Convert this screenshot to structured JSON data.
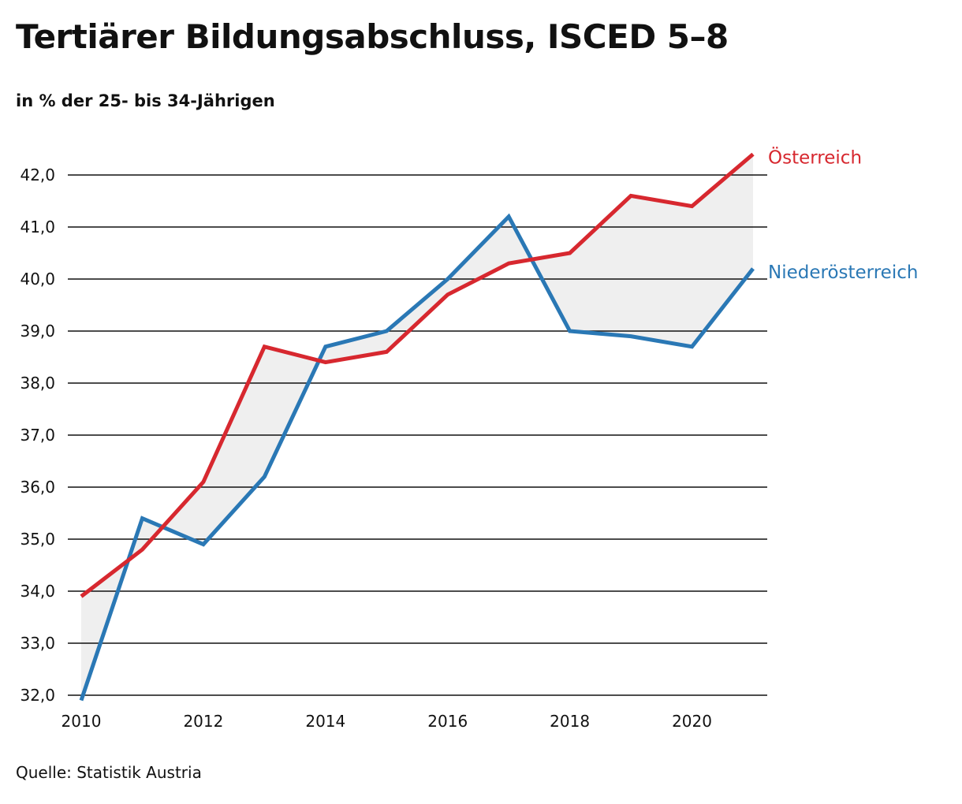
{
  "title": "Tertiärer Bildungsabschluss, ISCED 5–8",
  "subtitle": "in % der 25- bis 34-Jährigen",
  "source": "Quelle: Statistik Austria",
  "chart_data": {
    "type": "line",
    "title": "Tertiärer Bildungsabschluss, ISCED 5–8",
    "subtitle": "in % der 25- bis 34-Jährigen",
    "x": [
      2010,
      2011,
      2012,
      2013,
      2014,
      2015,
      2016,
      2017,
      2018,
      2019,
      2020,
      2021
    ],
    "x_ticks": [
      2010,
      2012,
      2014,
      2016,
      2018,
      2020
    ],
    "x_tick_labels": [
      "2010",
      "2012",
      "2014",
      "2016",
      "2018",
      "2020"
    ],
    "ylim": [
      32,
      42
    ],
    "y_ticks": [
      32,
      33,
      34,
      35,
      36,
      37,
      38,
      39,
      40,
      41,
      42
    ],
    "y_tick_labels": [
      "32,0",
      "33,0",
      "34,0",
      "35,0",
      "36,0",
      "37,0",
      "38,0",
      "39,0",
      "40,0",
      "41,0",
      "42,0"
    ],
    "grid": "horizontal",
    "fill_between_series": true,
    "fill_color": "#efefef",
    "series": [
      {
        "name": "Österreich",
        "color": "#d7282f",
        "values": [
          33.9,
          34.8,
          36.1,
          38.7,
          38.4,
          38.6,
          39.7,
          40.3,
          40.5,
          41.6,
          41.4,
          42.4
        ]
      },
      {
        "name": "Niederösterreich",
        "color": "#2a78b5",
        "values": [
          31.9,
          35.4,
          34.9,
          36.2,
          38.7,
          39.0,
          40.0,
          41.2,
          39.0,
          38.9,
          38.7,
          40.2
        ]
      }
    ],
    "legend": "direct labels at line ends (right)"
  }
}
